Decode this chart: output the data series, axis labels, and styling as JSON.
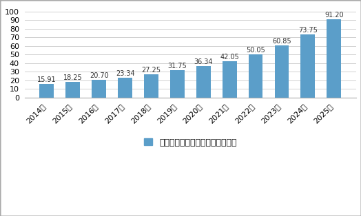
{
  "categories": [
    "2014年",
    "2015年",
    "2016年",
    "2017年",
    "2018年",
    "2019年",
    "2020年",
    "2021年",
    "2022年",
    "2023年",
    "2024年",
    "2025年"
  ],
  "values": [
    15.91,
    18.25,
    20.7,
    23.34,
    27.25,
    31.75,
    36.34,
    42.05,
    50.05,
    60.85,
    73.75,
    91.2
  ],
  "bar_color": "#5b9ec9",
  "ylabel_ticks": [
    0,
    10,
    20,
    30,
    40,
    50,
    60,
    70,
    80,
    90,
    100
  ],
  "ylim": [
    0,
    108
  ],
  "legend_label": "全球水下机器人市场规模：亿美元",
  "legend_color": "#5b9ec9",
  "background_color": "#ffffff",
  "grid_color": "#d0d0d0",
  "label_fontsize": 7,
  "tick_fontsize": 8,
  "legend_fontsize": 9,
  "border_color": "#aaaaaa"
}
